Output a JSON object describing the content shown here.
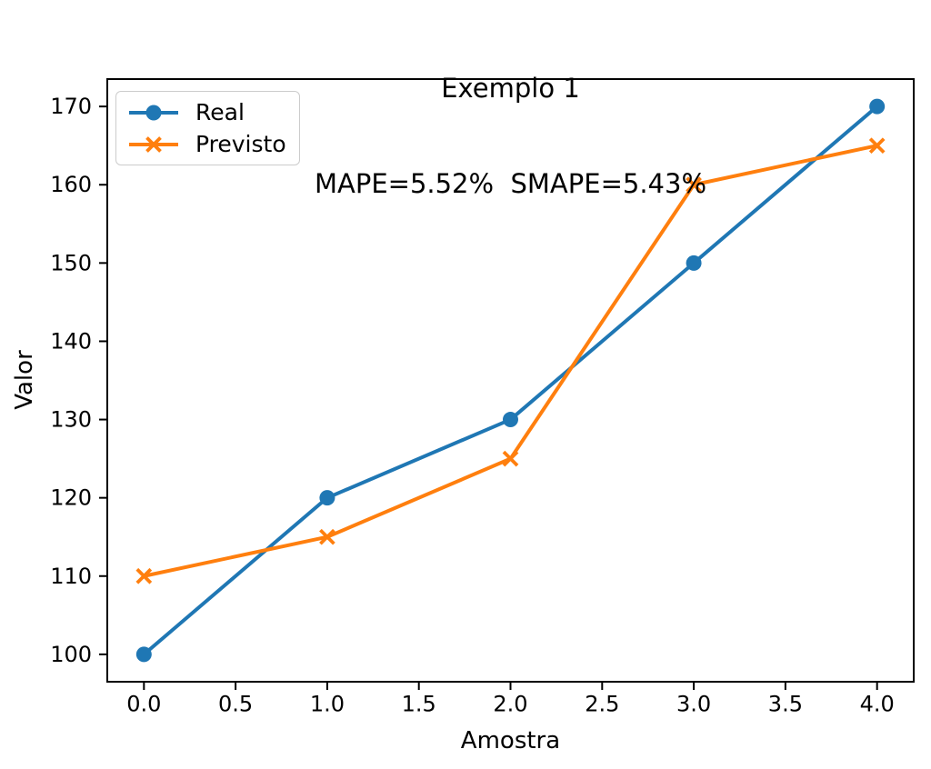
{
  "title": {
    "line1": "Exemplo 1",
    "line2": "MAPE=5.52%  SMAPE=5.43%"
  },
  "chart_data": {
    "type": "line",
    "x": [
      0,
      1,
      2,
      3,
      4
    ],
    "series": [
      {
        "name": "Real",
        "values": [
          100,
          120,
          130,
          150,
          170
        ],
        "color": "#1f77b4",
        "marker": "circle"
      },
      {
        "name": "Previsto",
        "values": [
          110,
          115,
          125,
          160,
          165
        ],
        "color": "#ff7f0e",
        "marker": "x"
      }
    ],
    "xlabel": "Amostra",
    "ylabel": "Valor",
    "xlim": [
      -0.2,
      4.2
    ],
    "ylim": [
      96.5,
      173.5
    ],
    "xticks": {
      "values": [
        0,
        0.5,
        1,
        1.5,
        2,
        2.5,
        3,
        3.5,
        4
      ],
      "labels": [
        "0.0",
        "0.5",
        "1.0",
        "1.5",
        "2.0",
        "2.5",
        "3.0",
        "3.5",
        "4.0"
      ]
    },
    "yticks": {
      "values": [
        100,
        110,
        120,
        130,
        140,
        150,
        160,
        170
      ],
      "labels": [
        "100",
        "110",
        "120",
        "130",
        "140",
        "150",
        "160",
        "170"
      ]
    },
    "grid": false,
    "legend": {
      "position": "upper left",
      "entries": [
        "Real",
        "Previsto"
      ]
    }
  },
  "colors": {
    "axis": "#000000",
    "text": "#000000",
    "background": "#ffffff",
    "legend_border": "#cccccc"
  }
}
